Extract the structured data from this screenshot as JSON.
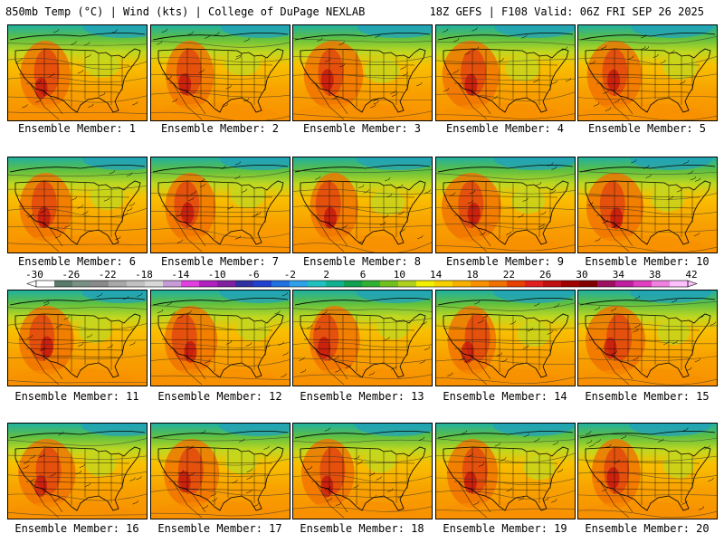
{
  "header": {
    "left": "850mb Temp (°C) | Wind (kts) | College of DuPage NEXLAB",
    "right": "18Z GEFS | F108 Valid: 06Z FRI SEP 26 2025"
  },
  "panels": [
    {
      "label": "Ensemble Member: 1"
    },
    {
      "label": "Ensemble Member: 2"
    },
    {
      "label": "Ensemble Member: 3"
    },
    {
      "label": "Ensemble Member: 4"
    },
    {
      "label": "Ensemble Member: 5"
    },
    {
      "label": "Ensemble Member: 6"
    },
    {
      "label": "Ensemble Member: 7"
    },
    {
      "label": "Ensemble Member: 8"
    },
    {
      "label": "Ensemble Member: 9"
    },
    {
      "label": "Ensemble Member: 10"
    },
    {
      "label": "Ensemble Member: 11"
    },
    {
      "label": "Ensemble Member: 12"
    },
    {
      "label": "Ensemble Member: 13"
    },
    {
      "label": "Ensemble Member: 14"
    },
    {
      "label": "Ensemble Member: 15"
    },
    {
      "label": "Ensemble Member: 16"
    },
    {
      "label": "Ensemble Member: 17"
    },
    {
      "label": "Ensemble Member: 18"
    },
    {
      "label": "Ensemble Member: 19"
    },
    {
      "label": "Ensemble Member: 20"
    }
  ],
  "colorbar": {
    "ticks": [
      "-30",
      "-26",
      "-22",
      "-18",
      "-14",
      "-10",
      "-6",
      "-2",
      "2",
      "6",
      "10",
      "14",
      "18",
      "22",
      "26",
      "30",
      "34",
      "38",
      "42"
    ],
    "colors": [
      "#ffffff",
      "#5a7a6a",
      "#7a8f84",
      "#8a8a8a",
      "#a8a8a8",
      "#c0c0c0",
      "#d8d8d8",
      "#c89ad8",
      "#e040e0",
      "#b020c0",
      "#8020a0",
      "#3030a0",
      "#2040d0",
      "#2070e0",
      "#30a0e8",
      "#20c0c0",
      "#10b090",
      "#10a050",
      "#30b030",
      "#70c020",
      "#b0d020",
      "#f0f000",
      "#f8d000",
      "#f8b000",
      "#f89000",
      "#f07000",
      "#e84000",
      "#e02020",
      "#c01010",
      "#a00000",
      "#800000",
      "#a01060",
      "#c020a0",
      "#e040c0",
      "#f080e0",
      "#ffc0ff"
    ]
  }
}
